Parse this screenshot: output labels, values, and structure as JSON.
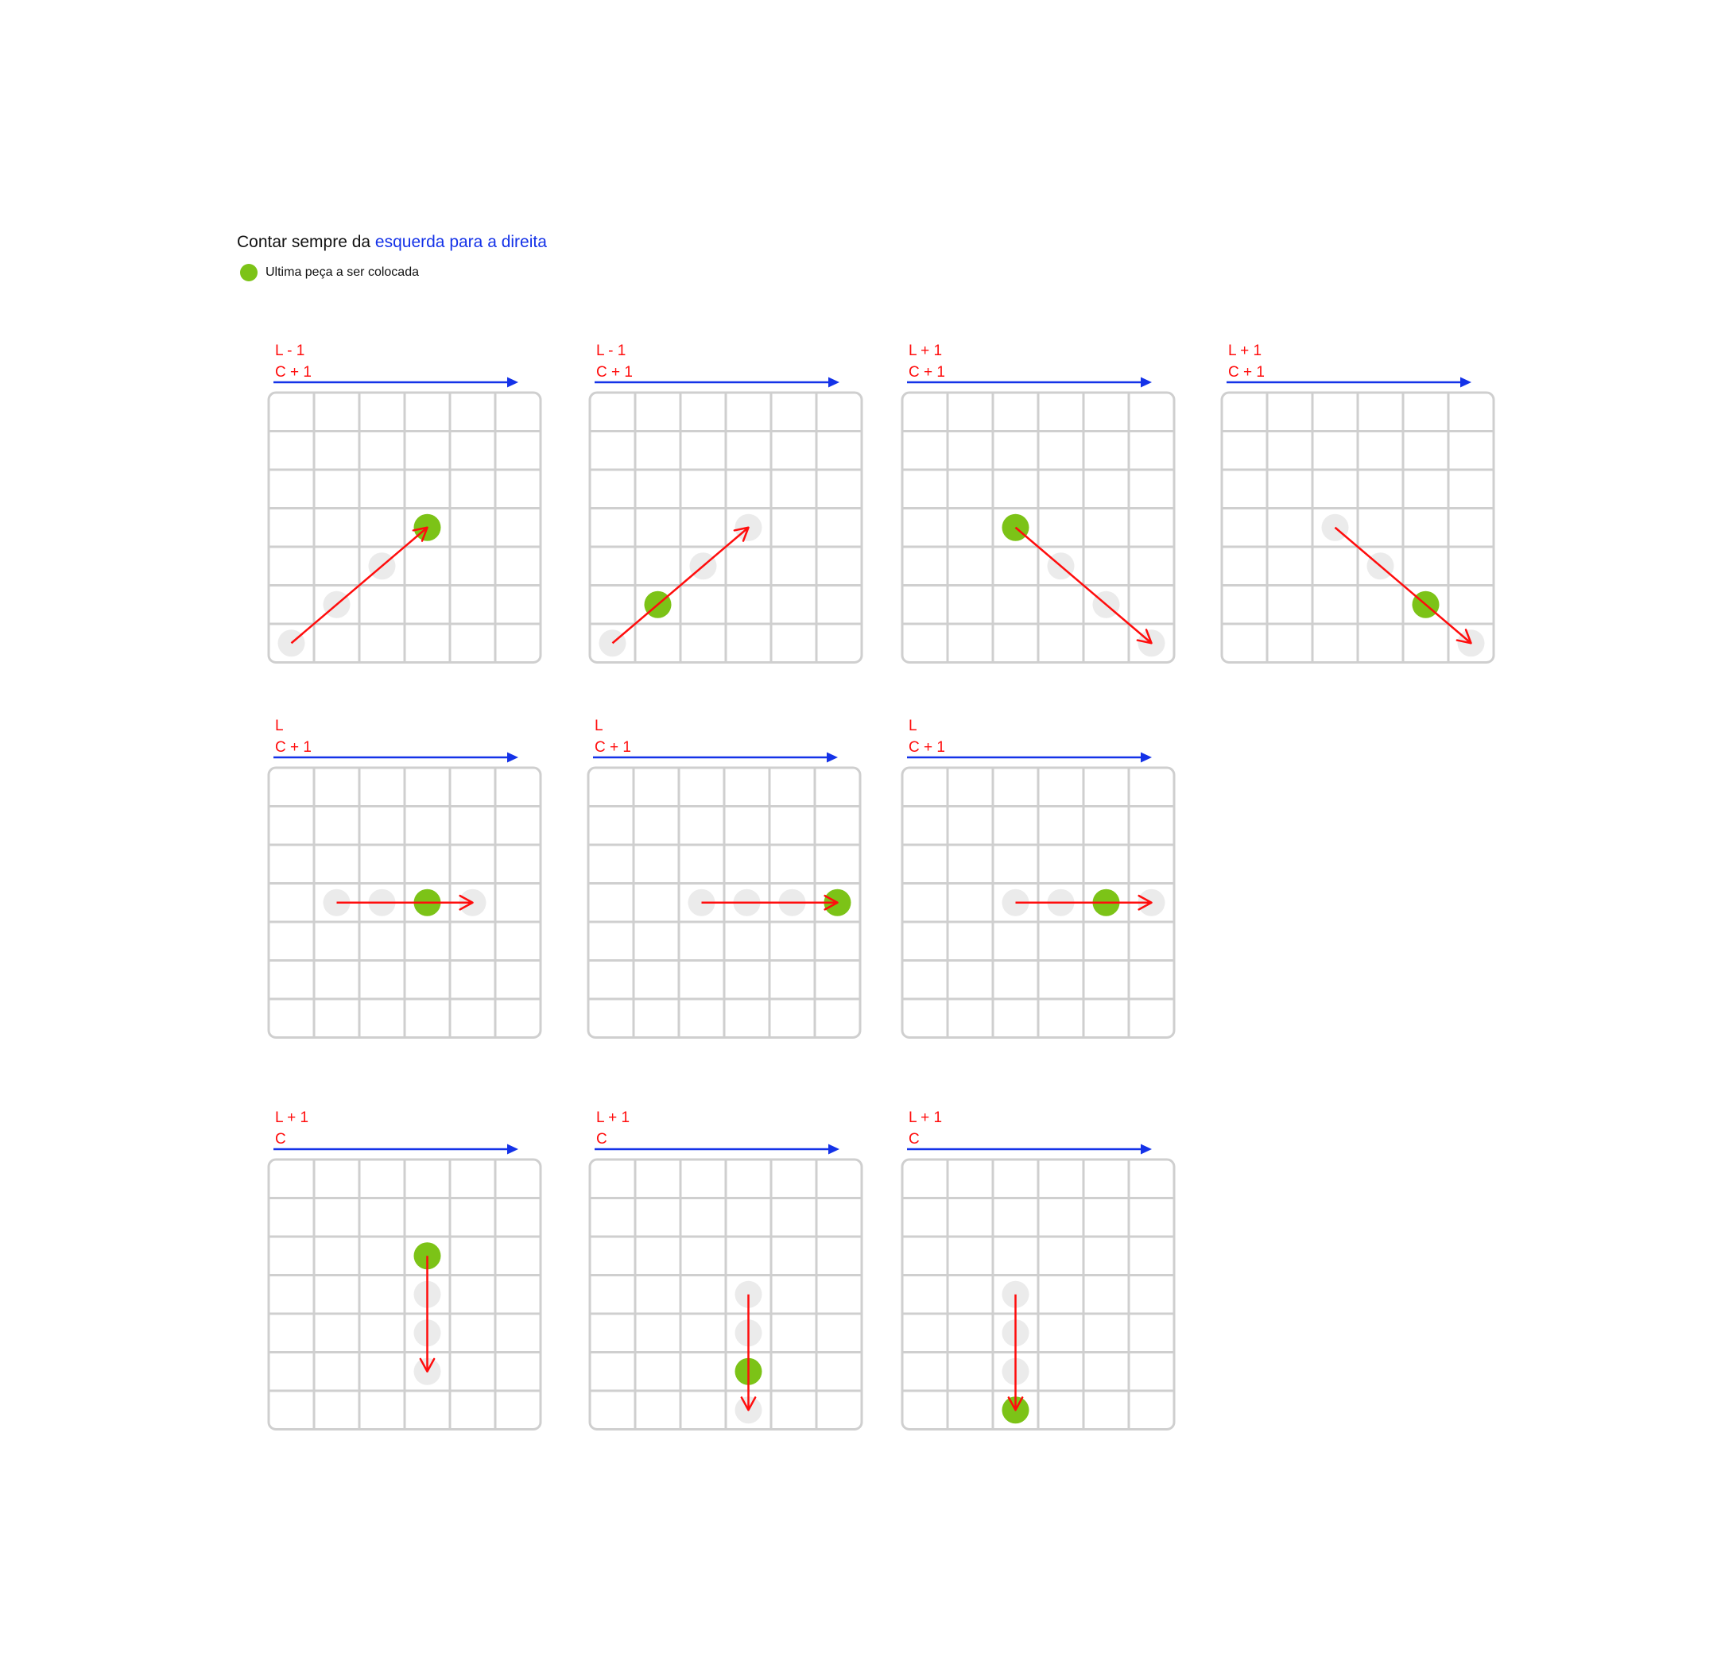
{
  "header": {
    "prefix": "Contar sempre da ",
    "highlight": "esquerda para a direita"
  },
  "legend": {
    "label": "Ultima peça a ser colocada",
    "icon": "green-dot"
  },
  "colors": {
    "direction_arrow": "#1432e8",
    "move_arrow": "#ff0d0d",
    "label_text": "#ff0d0d",
    "last_piece": "#7cc317",
    "piece": "#ebebeb",
    "grid": "#cfcfcf",
    "highlight_text": "#1432e8"
  },
  "grid": {
    "rows": 7,
    "cols": 6
  },
  "panels": [
    {
      "id": "p1",
      "row_label": "L - 1",
      "col_label": "C + 1",
      "pieces": [
        [
          6,
          0
        ],
        [
          5,
          1
        ],
        [
          4,
          2
        ]
      ],
      "last": [
        3,
        3
      ],
      "arrow": {
        "from": [
          6,
          0
        ],
        "to": [
          3,
          3
        ]
      }
    },
    {
      "id": "p2",
      "row_label": "L - 1",
      "col_label": "C + 1",
      "pieces": [
        [
          6,
          0
        ],
        [
          4,
          2
        ],
        [
          3,
          3
        ]
      ],
      "last": [
        5,
        1
      ],
      "arrow": {
        "from": [
          6,
          0
        ],
        "to": [
          3,
          3
        ]
      }
    },
    {
      "id": "p3",
      "row_label": "L + 1",
      "col_label": "C + 1",
      "pieces": [
        [
          4,
          3
        ],
        [
          5,
          4
        ],
        [
          6,
          5
        ]
      ],
      "last": [
        3,
        2
      ],
      "arrow": {
        "from": [
          3,
          2
        ],
        "to": [
          6,
          5
        ]
      }
    },
    {
      "id": "p4",
      "row_label": "L + 1",
      "col_label": "C + 1",
      "pieces": [
        [
          3,
          2
        ],
        [
          4,
          3
        ],
        [
          6,
          5
        ]
      ],
      "last": [
        5,
        4
      ],
      "arrow": {
        "from": [
          3,
          2
        ],
        "to": [
          6,
          5
        ]
      }
    },
    {
      "id": "p5",
      "row_label": "L",
      "col_label": "C + 1",
      "pieces": [
        [
          3,
          1
        ],
        [
          3,
          2
        ],
        [
          3,
          4
        ]
      ],
      "last": [
        3,
        3
      ],
      "arrow": {
        "from": [
          3,
          1
        ],
        "to": [
          3,
          4
        ]
      }
    },
    {
      "id": "p6",
      "row_label": "L",
      "col_label": "C + 1",
      "pieces": [
        [
          3,
          2
        ],
        [
          3,
          3
        ],
        [
          3,
          4
        ]
      ],
      "last": [
        3,
        5
      ],
      "arrow": {
        "from": [
          3,
          2
        ],
        "to": [
          3,
          5
        ]
      }
    },
    {
      "id": "p7",
      "row_label": "L",
      "col_label": "C + 1",
      "pieces": [
        [
          3,
          2
        ],
        [
          3,
          3
        ],
        [
          3,
          5
        ]
      ],
      "last": [
        3,
        4
      ],
      "arrow": {
        "from": [
          3,
          2
        ],
        "to": [
          3,
          5
        ]
      }
    },
    {
      "id": "p8",
      "row_label": "L + 1",
      "col_label": "C",
      "pieces": [
        [
          3,
          3
        ],
        [
          4,
          3
        ],
        [
          5,
          3
        ]
      ],
      "last": [
        2,
        3
      ],
      "arrow": {
        "from": [
          2,
          3
        ],
        "to": [
          5,
          3
        ]
      }
    },
    {
      "id": "p9",
      "row_label": "L + 1",
      "col_label": "C",
      "pieces": [
        [
          3,
          3
        ],
        [
          4,
          3
        ],
        [
          6,
          3
        ]
      ],
      "last": [
        5,
        3
      ],
      "arrow": {
        "from": [
          3,
          3
        ],
        "to": [
          6,
          3
        ]
      }
    },
    {
      "id": "p10",
      "row_label": "L + 1",
      "col_label": "C",
      "pieces": [
        [
          3,
          2
        ],
        [
          4,
          2
        ],
        [
          5,
          2
        ]
      ],
      "last": [
        6,
        2
      ],
      "arrow": {
        "from": [
          3,
          2
        ],
        "to": [
          6,
          2
        ]
      }
    }
  ]
}
